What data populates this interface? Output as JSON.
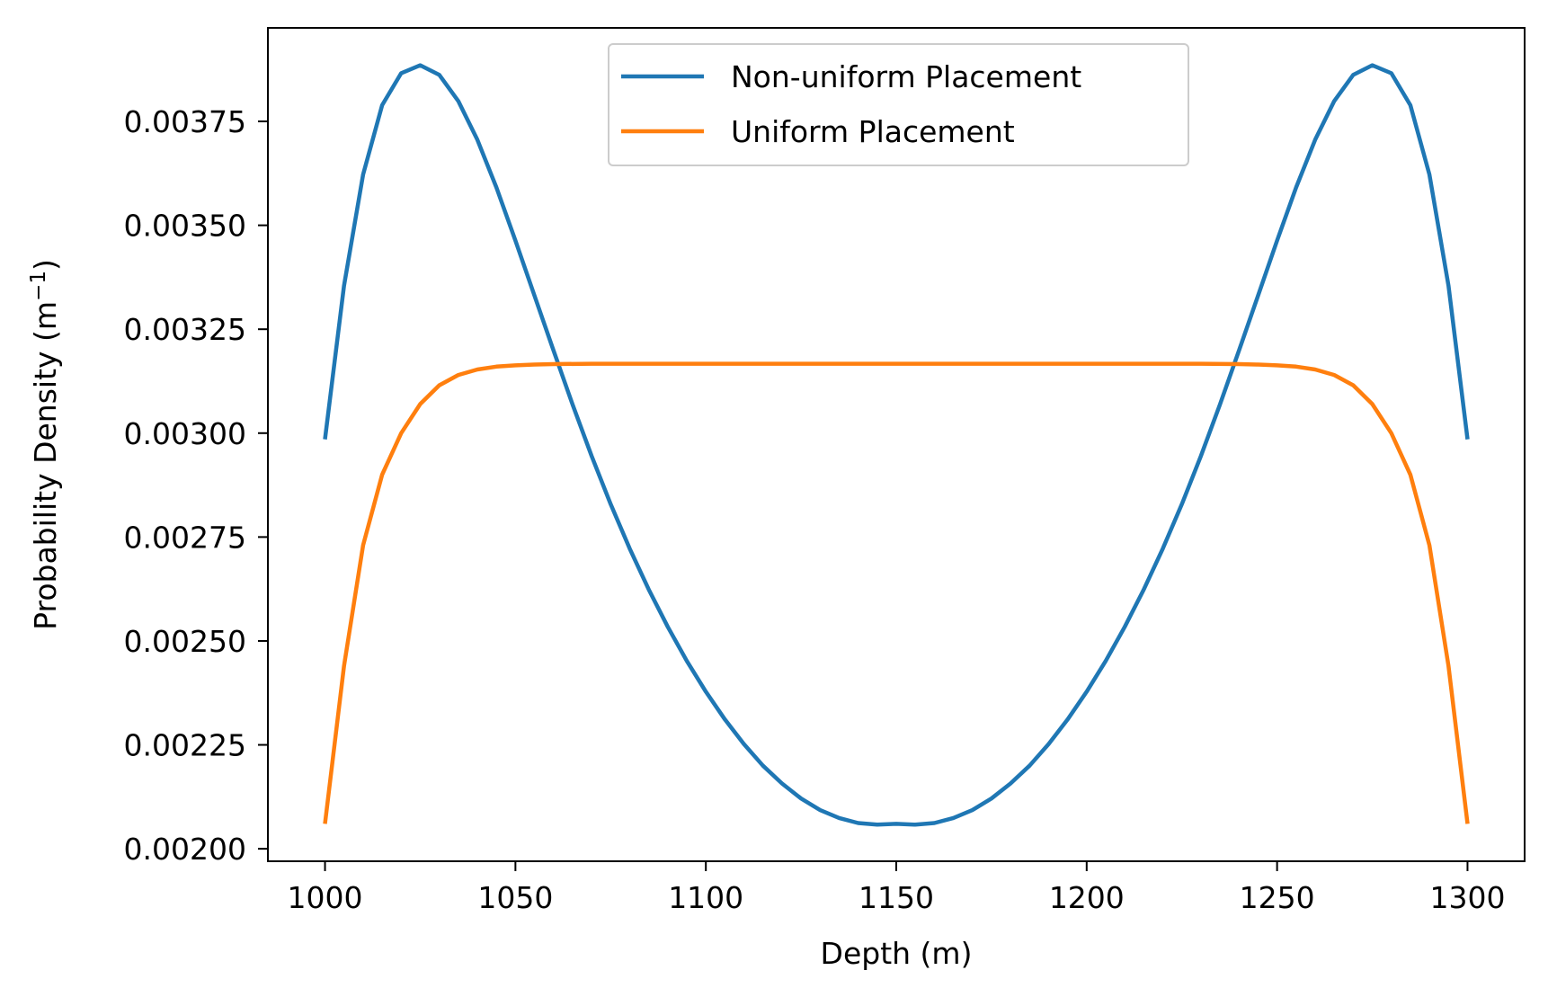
{
  "chart_data": {
    "type": "line",
    "title": "",
    "xlabel": "Depth (m)",
    "ylabel": "Probability Density (m",
    "ylabel_sup": "−1",
    "ylabel_tail": ")",
    "xlim": [
      985,
      1315
    ],
    "ylim": [
      0.00197,
      0.003975
    ],
    "xticks": [
      1000,
      1050,
      1100,
      1150,
      1200,
      1250,
      1300
    ],
    "xtick_labels": [
      "1000",
      "1050",
      "1100",
      "1150",
      "1200",
      "1250",
      "1300"
    ],
    "yticks": [
      0.002,
      0.00225,
      0.0025,
      0.00275,
      0.003,
      0.00325,
      0.0035,
      0.00375
    ],
    "ytick_labels": [
      "0.00200",
      "0.00225",
      "0.00250",
      "0.00275",
      "0.00300",
      "0.00325",
      "0.00350",
      "0.00375"
    ],
    "grid": false,
    "legend_position": "top-center",
    "series": [
      {
        "name": "Non-uniform Placement",
        "color": "#1f77b4",
        "x": [
          1000,
          1005,
          1010,
          1015,
          1020,
          1025,
          1030,
          1035,
          1040,
          1045,
          1050,
          1055,
          1060,
          1065,
          1070,
          1075,
          1080,
          1085,
          1090,
          1095,
          1100,
          1105,
          1110,
          1115,
          1120,
          1125,
          1130,
          1135,
          1140,
          1145,
          1150,
          1155,
          1160,
          1165,
          1170,
          1175,
          1180,
          1185,
          1190,
          1195,
          1200,
          1205,
          1210,
          1215,
          1220,
          1225,
          1230,
          1235,
          1240,
          1245,
          1250,
          1255,
          1260,
          1265,
          1270,
          1275,
          1280,
          1285,
          1290,
          1295,
          1300
        ],
        "y": [
          0.002985,
          0.003355,
          0.003622,
          0.003789,
          0.003866,
          0.003885,
          0.003862,
          0.003799,
          0.003706,
          0.003591,
          0.003463,
          0.003331,
          0.003199,
          0.003069,
          0.002945,
          0.002829,
          0.002722,
          0.002624,
          0.002534,
          0.002452,
          0.002378,
          0.002311,
          0.002252,
          0.0022,
          0.002157,
          0.002121,
          0.002093,
          0.002074,
          0.002062,
          0.002058,
          0.00206,
          0.002058,
          0.002062,
          0.002074,
          0.002093,
          0.002121,
          0.002157,
          0.0022,
          0.002252,
          0.002311,
          0.002378,
          0.002452,
          0.002534,
          0.002624,
          0.002722,
          0.002829,
          0.002945,
          0.003069,
          0.003199,
          0.003331,
          0.003463,
          0.003591,
          0.003706,
          0.003799,
          0.003862,
          0.003885,
          0.003866,
          0.003789,
          0.003622,
          0.003355,
          0.002985
        ]
      },
      {
        "name": "Uniform Placement",
        "color": "#ff7f0e",
        "x": [
          1000,
          1005,
          1010,
          1015,
          1020,
          1025,
          1030,
          1035,
          1040,
          1045,
          1050,
          1055,
          1060,
          1070,
          1080,
          1100,
          1150,
          1200,
          1220,
          1230,
          1240,
          1245,
          1250,
          1255,
          1260,
          1265,
          1270,
          1275,
          1280,
          1285,
          1290,
          1295,
          1300
        ],
        "y": [
          0.00206,
          0.00244,
          0.00273,
          0.0029,
          0.003,
          0.00307,
          0.003115,
          0.00314,
          0.003153,
          0.00316,
          0.003163,
          0.003165,
          0.003166,
          0.003167,
          0.003167,
          0.003167,
          0.003167,
          0.003167,
          0.003167,
          0.003167,
          0.003166,
          0.003165,
          0.003163,
          0.00316,
          0.003153,
          0.00314,
          0.003115,
          0.00307,
          0.003,
          0.0029,
          0.00273,
          0.00244,
          0.00206
        ]
      }
    ]
  }
}
